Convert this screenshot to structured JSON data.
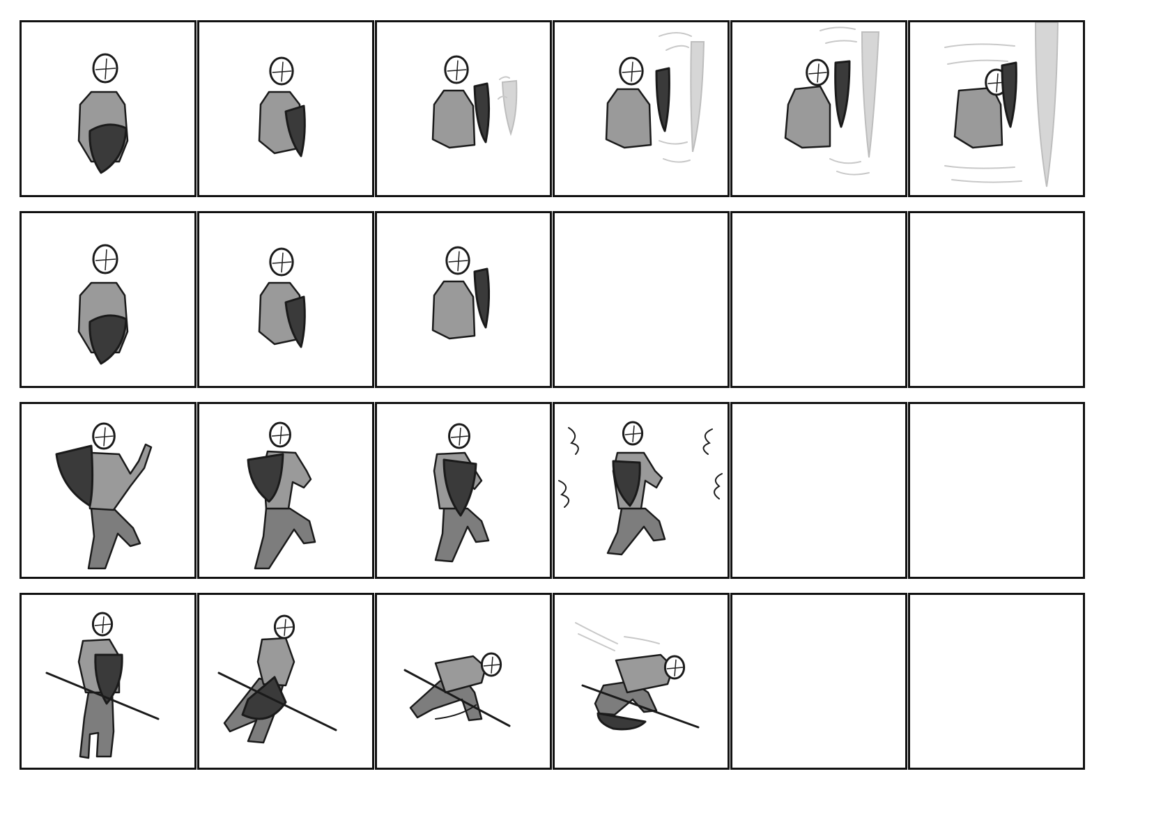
{
  "sheet": {
    "rows": [
      {
        "frames": [
          {
            "content": "idle-shield-front"
          },
          {
            "content": "shield-turn"
          },
          {
            "content": "shield-raise-incoming-blade"
          },
          {
            "content": "block-blade-impact"
          },
          {
            "content": "block-blade-push"
          },
          {
            "content": "block-blade-recoil"
          }
        ]
      },
      {
        "frames": [
          {
            "content": "idle-shield-front"
          },
          {
            "content": "shield-turn"
          },
          {
            "content": "shield-raise"
          },
          {
            "content": "empty"
          },
          {
            "content": "empty"
          },
          {
            "content": "empty"
          }
        ]
      },
      {
        "frames": [
          {
            "content": "shield-charge-windup"
          },
          {
            "content": "shield-charge-step"
          },
          {
            "content": "shield-charge-brace"
          },
          {
            "content": "shield-bash-impact"
          },
          {
            "content": "empty"
          },
          {
            "content": "empty"
          }
        ]
      },
      {
        "frames": [
          {
            "content": "spear-swing-guard"
          },
          {
            "content": "spear-dodge-lunge"
          },
          {
            "content": "spear-dodge-crouch"
          },
          {
            "content": "spear-dodge-slide"
          },
          {
            "content": "empty"
          },
          {
            "content": "empty"
          }
        ]
      }
    ],
    "colors": {
      "border": "#111111",
      "body": "#9a9a9a",
      "shield": "#3a3a3a",
      "blade": "#d6d6d6",
      "ink": "#1a1a1a"
    }
  }
}
